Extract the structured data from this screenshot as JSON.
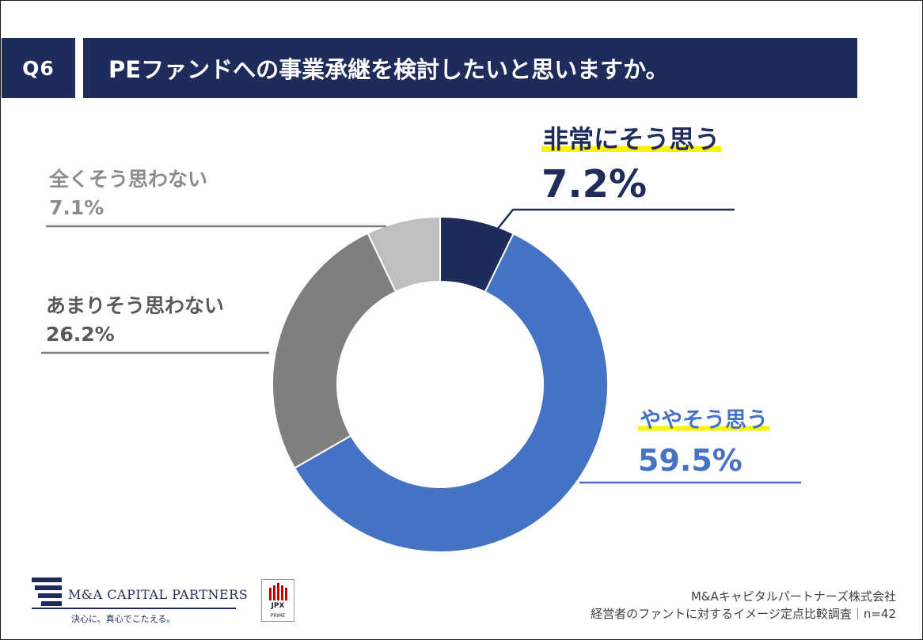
{
  "header": {
    "question_no": "Q6",
    "title": "PEファンドへの事業承継を検討したいと思いますか。"
  },
  "chart_data": {
    "type": "pie",
    "title": "PEファンドへの事業承継を検討したいと思いますか。",
    "categories": [
      "非常にそう思う",
      "ややそう思う",
      "あまりそう思わない",
      "全くそう思わない"
    ],
    "values": [
      7.2,
      59.5,
      26.2,
      7.1
    ],
    "value_labels": [
      "7.2%",
      "59.5%",
      "26.2%",
      "7.1%"
    ],
    "colors": [
      "#1f2b5a",
      "#4472c4",
      "#7f7f7f",
      "#bfbfbf"
    ],
    "donut": true,
    "start": "12 o'clock",
    "direction": "clockwise"
  },
  "footer": {
    "company_logo": "M&A CAPITAL PARTNERS",
    "tagline": "決心に、真心でこたえる。",
    "jpx_label": "JPX",
    "jpx_sub": "PRIME",
    "source_company": "M&Aキャピタルパートナーズ株式会社",
    "source_survey": "経営者のファントに対するイメージ定点比較調査｜n=42"
  }
}
